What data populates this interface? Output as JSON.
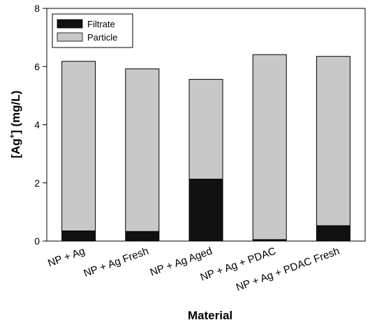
{
  "chart_data": {
    "type": "bar",
    "stacked": true,
    "categories": [
      "NP + Ag",
      "NP + Ag Fresh",
      "NP + Ag Aged",
      "NP + Ag + PDAC",
      "NP + Ag + PDAC Fresh"
    ],
    "series": [
      {
        "name": "Filtrate",
        "color": "#111111",
        "values": [
          0.35,
          0.33,
          2.13,
          0.05,
          0.53
        ]
      },
      {
        "name": "Particle",
        "color": "#c8c8c8",
        "values": [
          5.83,
          5.59,
          3.43,
          6.36,
          5.82
        ]
      }
    ],
    "xlabel": "Material",
    "ylabel_main": "[Ag",
    "ylabel_sup": "+",
    "ylabel_rest": "] (mg/L)",
    "ylim": [
      0,
      8
    ],
    "yticks": [
      "0",
      "2",
      "4",
      "6",
      "8"
    ],
    "legend_position": "top-left",
    "grid": false
  }
}
